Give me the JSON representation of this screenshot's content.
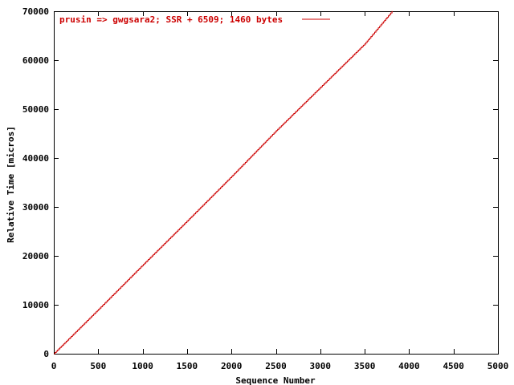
{
  "chart_data": {
    "type": "line",
    "title": "",
    "xlabel": "Sequence Number",
    "ylabel": "Relative Time [micros]",
    "xlim": [
      0,
      5000
    ],
    "ylim": [
      0,
      70000
    ],
    "xticks": [
      0,
      500,
      1000,
      1500,
      2000,
      2500,
      3000,
      3500,
      4000,
      4500,
      5000
    ],
    "yticks": [
      0,
      10000,
      20000,
      30000,
      40000,
      50000,
      60000,
      70000
    ],
    "grid": false,
    "legend_position": "top-left",
    "series": [
      {
        "name": "prusin => gwgsara2; SSR + 6509; 1460 bytes",
        "color": "#cc0000",
        "style": "steps",
        "x": [
          0,
          500,
          1000,
          1500,
          2000,
          2500,
          3000,
          3500,
          3810
        ],
        "y": [
          0,
          9000,
          18100,
          27100,
          36200,
          45500,
          54400,
          63300,
          70000
        ]
      }
    ]
  }
}
